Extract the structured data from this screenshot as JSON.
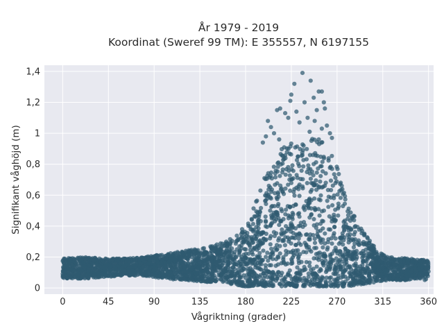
{
  "chart_data": {
    "type": "scatter",
    "title": "År 1979 - 2019",
    "subtitle": "Koordinat (Sweref 99 TM): E 355557, N 6197155",
    "xlabel": "Vågriktning (grader)",
    "ylabel": "Signifikant våghöjd (m)",
    "xlim": [
      -18,
      365
    ],
    "ylim": [
      -0.04,
      1.44
    ],
    "xticks": [
      0,
      45,
      90,
      135,
      180,
      225,
      270,
      315,
      360
    ],
    "xtick_labels": [
      "0",
      "45",
      "90",
      "135",
      "180",
      "225",
      "270",
      "315",
      "360"
    ],
    "yticks": [
      0,
      0.2,
      0.4,
      0.6,
      0.8,
      1.0,
      1.2,
      1.4
    ],
    "ytick_labels": [
      "0",
      "0,2",
      "0,4",
      "0,6",
      "0,8",
      "1",
      "1,2",
      "1,4"
    ],
    "grid": true,
    "marker_color": "#2f5a70",
    "plot_background": "#e8e9f0",
    "envelope": {
      "x": [
        0,
        20,
        40,
        60,
        80,
        100,
        120,
        140,
        160,
        170,
        180,
        190,
        200,
        210,
        220,
        225,
        230,
        240,
        250,
        260,
        270,
        280,
        290,
        300,
        310,
        320,
        340,
        360
      ],
      "ymax": [
        0.19,
        0.2,
        0.19,
        0.19,
        0.2,
        0.22,
        0.24,
        0.26,
        0.3,
        0.34,
        0.42,
        0.55,
        0.75,
        0.88,
        0.92,
        0.97,
        0.95,
        0.97,
        0.96,
        0.93,
        0.78,
        0.55,
        0.43,
        0.33,
        0.24,
        0.2,
        0.19,
        0.18
      ],
      "ymin": [
        0.06,
        0.06,
        0.07,
        0.08,
        0.08,
        0.06,
        0.05,
        0.04,
        0.03,
        0.02,
        0.01,
        0.01,
        0.01,
        0.01,
        0.01,
        0.01,
        0.01,
        0.01,
        0.01,
        0.01,
        0.01,
        0.01,
        0.02,
        0.03,
        0.04,
        0.05,
        0.05,
        0.05
      ]
    },
    "outliers": [
      {
        "x": 236,
        "y": 1.39
      },
      {
        "x": 228,
        "y": 1.32
      },
      {
        "x": 244,
        "y": 1.34
      },
      {
        "x": 252,
        "y": 1.27
      },
      {
        "x": 255,
        "y": 1.27
      },
      {
        "x": 225,
        "y": 1.25
      },
      {
        "x": 247,
        "y": 1.23
      },
      {
        "x": 224,
        "y": 1.21
      },
      {
        "x": 238,
        "y": 1.2
      },
      {
        "x": 257,
        "y": 1.2
      },
      {
        "x": 214,
        "y": 1.16
      },
      {
        "x": 219,
        "y": 1.13
      },
      {
        "x": 230,
        "y": 1.14
      },
      {
        "x": 250,
        "y": 1.15
      },
      {
        "x": 258,
        "y": 1.16
      },
      {
        "x": 211,
        "y": 1.15
      },
      {
        "x": 241,
        "y": 1.1
      },
      {
        "x": 202,
        "y": 1.08
      },
      {
        "x": 222,
        "y": 1.1
      },
      {
        "x": 233,
        "y": 1.07
      },
      {
        "x": 248,
        "y": 1.08
      },
      {
        "x": 260,
        "y": 1.05
      },
      {
        "x": 205,
        "y": 1.04
      },
      {
        "x": 255,
        "y": 1.03
      },
      {
        "x": 208,
        "y": 1.0
      },
      {
        "x": 243,
        "y": 1.01
      },
      {
        "x": 263,
        "y": 1.0
      },
      {
        "x": 200,
        "y": 0.98
      },
      {
        "x": 265,
        "y": 0.97
      },
      {
        "x": 197,
        "y": 0.94
      },
      {
        "x": 213,
        "y": 0.96
      },
      {
        "x": 252,
        "y": 0.96
      }
    ]
  }
}
